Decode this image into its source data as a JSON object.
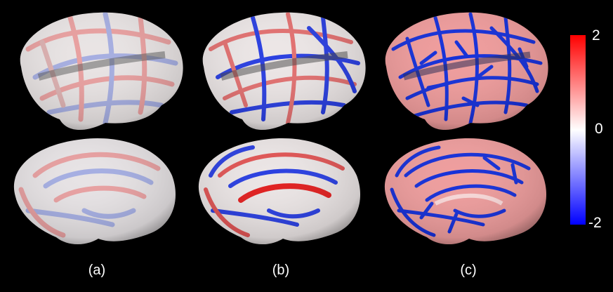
{
  "panels": [
    {
      "label": "(a)"
    },
    {
      "label": "(b)"
    },
    {
      "label": "(c)"
    }
  ],
  "colorbar": {
    "ticks": [
      "2",
      "0",
      "-2"
    ],
    "top_color": "#ff0000",
    "mid_color": "#ffffff",
    "bottom_color": "#0000ff"
  },
  "background_color": "#000000"
}
